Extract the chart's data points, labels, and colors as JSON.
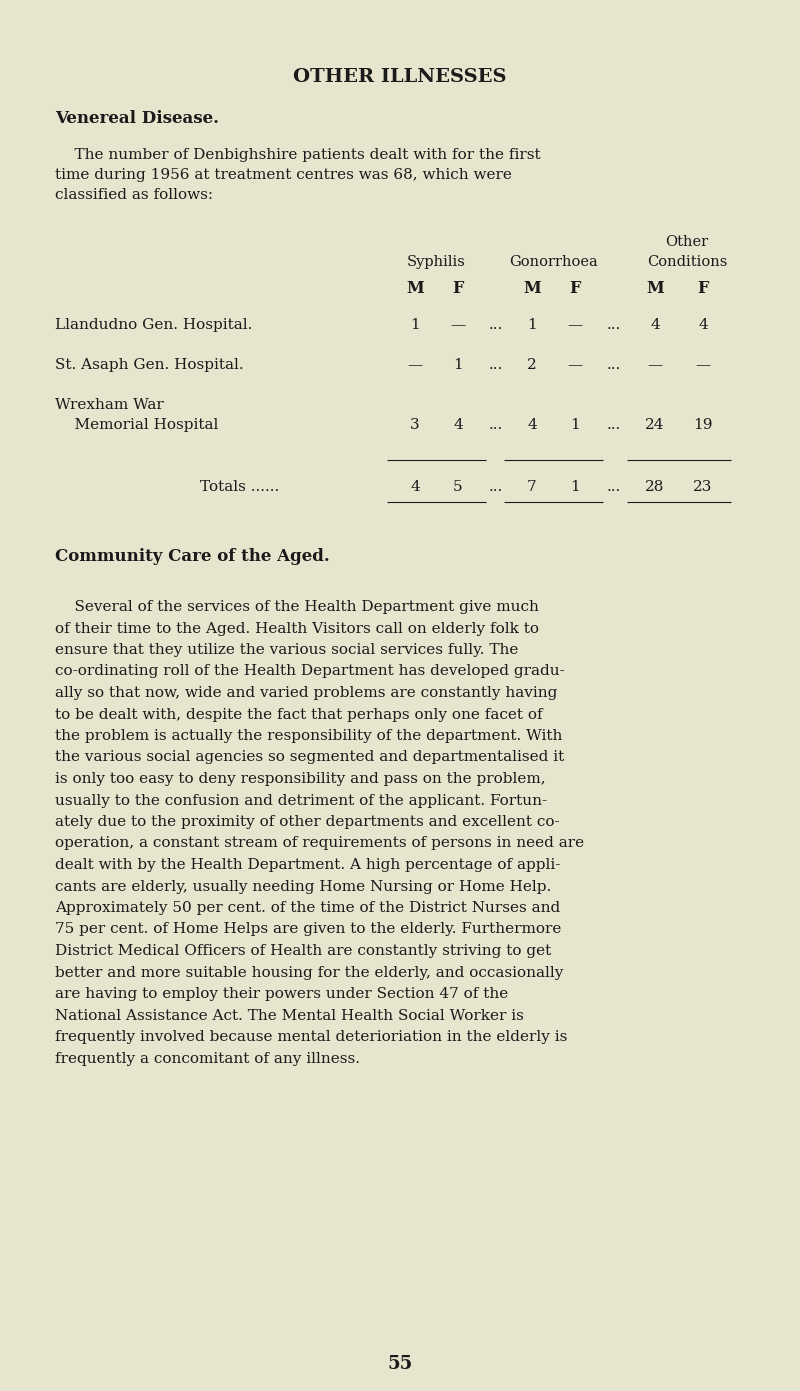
{
  "bg_color": "#e8e5ce",
  "text_color": "#1a1a1a",
  "page_width": 8.0,
  "page_height": 13.91,
  "dpi": 100,
  "title": "OTHER ILLNESSES",
  "section1_title": "Venereal Disease.",
  "intro_line1": "    The number of Denbighshire patients dealt with for the first",
  "intro_line2": "time during 1956 at treatment centres was 68, which were",
  "intro_line3": "classified as follows:",
  "col_other": "Other",
  "col_syphilis": "Syphilis",
  "col_gonorrhoea": "Gonorrhoea",
  "col_conditions": "Conditions",
  "mf_headers": [
    "M",
    "F",
    "M",
    "F",
    "M",
    "F"
  ],
  "row1_label": "Llandudno Gen. Hospital.",
  "row1_vals": [
    "1",
    "—",
    "...",
    "1",
    "—",
    "...",
    "4",
    "4"
  ],
  "row2_label": "St. Asaph Gen. Hospital.",
  "row2_vals": [
    "—",
    "1",
    "...",
    "2",
    "—",
    "...",
    "—",
    "—"
  ],
  "row3_label1": "Wrexham War",
  "row3_label2": "    Memorial Hospital",
  "row3_vals": [
    "3",
    "4",
    "...",
    "4",
    "1",
    "...",
    "24",
    "19"
  ],
  "tot_label": "Totals ......",
  "tot_vals": [
    "4",
    "5",
    "...",
    "7",
    "1",
    "...",
    "28",
    "23"
  ],
  "section2_title": "Community Care of the Aged.",
  "para_lines": [
    "    Several of the services of the Health Department give much",
    "of their time to the Aged. Health Visitors call on elderly folk to",
    "ensure that they utilize the various social services fully. The",
    "co-ordinating roll of the Health Department has developed gradu-",
    "ally so that now, wide and varied problems are constantly having",
    "to be dealt with, despite the fact that perhaps only one facet of",
    "the problem is actually the responsibility of the department. With",
    "the various social agencies so segmented and departmentalised it",
    "is only too easy to deny responsibility and pass on the problem,",
    "usually to the confusion and detriment of the applicant. Fortun-",
    "ately due to the proximity of other departments and excellent co-",
    "operation, a constant stream of requirements of persons in need are",
    "dealt with by the Health Department. A high percentage of appli-",
    "cants are elderly, usually needing Home Nursing or Home Help.",
    "Approximately 50 per cent. of the time of the District Nurses and",
    "75 per cent. of Home Helps are given to the elderly. Furthermore",
    "District Medical Officers of Health are constantly striving to get",
    "better and more suitable housing for the elderly, and occasionally",
    "are having to employ their powers under Section 47 of the",
    "National Assistance Act. The Mental Health Social Worker is",
    "frequently involved because mental deterioriation in the elderly is",
    "frequently a concomitant of any illness."
  ],
  "page_number": "55"
}
